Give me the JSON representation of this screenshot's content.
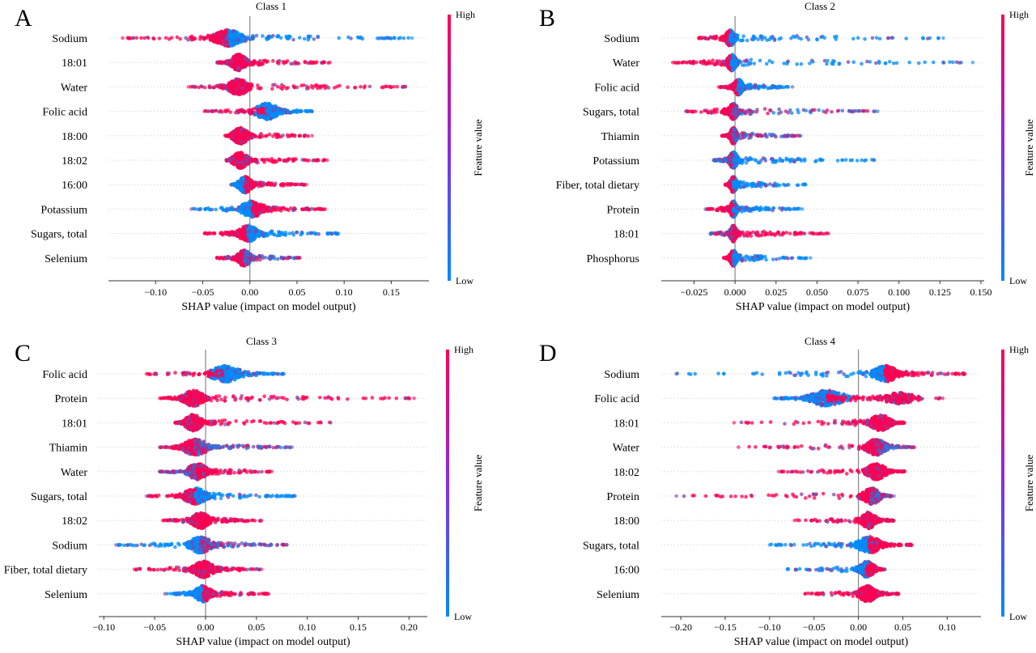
{
  "colorbar": {
    "label": "Feature value",
    "high_label": "High",
    "low_label": "Low",
    "high_color": "#ff0052",
    "low_color": "#008bfb",
    "mid_color": "#8a2be2"
  },
  "chart_data": [
    {
      "type": "scatter",
      "panel_label": "A",
      "title": "Class 1",
      "xlabel": "SHAP value (impact on model output)",
      "xlim": [
        -0.15,
        0.19
      ],
      "xticks": [
        "−0.10",
        "−0.05",
        "0.00",
        "0.05",
        "0.10",
        "0.15"
      ],
      "xtick_values": [
        -0.1,
        -0.05,
        0.0,
        0.05,
        0.1,
        0.15
      ],
      "features": [
        {
          "name": "Sodium",
          "left_min": -0.135,
          "right_max": 0.172,
          "center": -0.023,
          "width": 0.022,
          "left_color": "high",
          "right_color": "low"
        },
        {
          "name": "18:01",
          "left_min": -0.035,
          "right_max": 0.085,
          "center": -0.012,
          "width": 0.012,
          "left_color": "high",
          "right_color": "high"
        },
        {
          "name": "Water",
          "left_min": -0.065,
          "right_max": 0.165,
          "center": -0.012,
          "width": 0.015,
          "left_color": "high",
          "right_color": "high"
        },
        {
          "name": "Folic acid",
          "left_min": -0.048,
          "right_max": 0.066,
          "center": 0.018,
          "width": 0.018,
          "left_color": "high",
          "right_color": "low",
          "split": 0.006
        },
        {
          "name": "18:00",
          "left_min": -0.025,
          "right_max": 0.066,
          "center": -0.01,
          "width": 0.012,
          "left_color": "high",
          "right_color": "high"
        },
        {
          "name": "18:02",
          "left_min": -0.025,
          "right_max": 0.082,
          "center": -0.01,
          "width": 0.012,
          "left_color": "high",
          "right_color": "high"
        },
        {
          "name": "16:00",
          "left_min": -0.02,
          "right_max": 0.06,
          "center": -0.005,
          "width": 0.01,
          "left_color": "low",
          "right_color": "high"
        },
        {
          "name": "Potassium",
          "left_min": -0.062,
          "right_max": 0.08,
          "center": 0.003,
          "width": 0.018,
          "left_color": "low",
          "right_color": "high"
        },
        {
          "name": "Sugars, total",
          "left_min": -0.048,
          "right_max": 0.094,
          "center": -0.002,
          "width": 0.015,
          "left_color": "high",
          "right_color": "low"
        },
        {
          "name": "Selenium",
          "left_min": -0.035,
          "right_max": 0.053,
          "center": -0.006,
          "width": 0.01,
          "left_color": "high",
          "right_color": "mixed"
        }
      ]
    },
    {
      "type": "scatter",
      "panel_label": "B",
      "title": "Class 2",
      "xlabel": "SHAP value (impact on model output)",
      "xlim": [
        -0.045,
        0.152
      ],
      "xticks": [
        "−0.025",
        "0.000",
        "0.025",
        "0.050",
        "0.075",
        "0.100",
        "0.125",
        "0.150"
      ],
      "xtick_values": [
        -0.025,
        0.0,
        0.025,
        0.05,
        0.075,
        0.1,
        0.125,
        0.15
      ],
      "features": [
        {
          "name": "Sodium",
          "left_min": -0.022,
          "right_max": 0.127,
          "center": -0.003,
          "width": 0.004,
          "left_color": "high",
          "right_color": "low"
        },
        {
          "name": "Water",
          "left_min": -0.038,
          "right_max": 0.145,
          "center": -0.002,
          "width": 0.004,
          "left_color": "high",
          "right_color": "low"
        },
        {
          "name": "Folic acid",
          "left_min": -0.01,
          "right_max": 0.035,
          "center": 0.002,
          "width": 0.004,
          "left_color": "high",
          "right_color": "low"
        },
        {
          "name": "Sugars, total",
          "left_min": -0.03,
          "right_max": 0.087,
          "center": -0.001,
          "width": 0.004,
          "left_color": "high",
          "right_color": "mixed"
        },
        {
          "name": "Thiamin",
          "left_min": -0.008,
          "right_max": 0.04,
          "center": -0.001,
          "width": 0.003,
          "left_color": "high",
          "right_color": "mixed"
        },
        {
          "name": "Potassium",
          "left_min": -0.013,
          "right_max": 0.085,
          "center": -0.001,
          "width": 0.004,
          "left_color": "mixed",
          "right_color": "low"
        },
        {
          "name": "Fiber, total dietary",
          "left_min": -0.006,
          "right_max": 0.043,
          "center": -0.001,
          "width": 0.003,
          "left_color": "high",
          "right_color": "low"
        },
        {
          "name": "Protein",
          "left_min": -0.018,
          "right_max": 0.041,
          "center": -0.001,
          "width": 0.003,
          "left_color": "high",
          "right_color": "low"
        },
        {
          "name": "18:01",
          "left_min": -0.015,
          "right_max": 0.057,
          "center": -0.001,
          "width": 0.003,
          "left_color": "mixed",
          "right_color": "high"
        },
        {
          "name": "Phosphorus",
          "left_min": -0.007,
          "right_max": 0.046,
          "center": -0.001,
          "width": 0.003,
          "left_color": "high",
          "right_color": "low"
        }
      ]
    },
    {
      "type": "scatter",
      "panel_label": "C",
      "title": "Class 3",
      "xlabel": "SHAP value (impact on model output)",
      "xlim": [
        -0.105,
        0.218
      ],
      "xticks": [
        "−0.10",
        "−0.05",
        "0.00",
        "0.05",
        "0.10",
        "0.15",
        "0.20"
      ],
      "xtick_values": [
        -0.1,
        -0.05,
        0.0,
        0.05,
        0.1,
        0.15,
        0.2
      ],
      "features": [
        {
          "name": "Folic acid",
          "left_min": -0.058,
          "right_max": 0.077,
          "center": 0.02,
          "width": 0.022,
          "left_color": "high",
          "right_color": "low",
          "split": 0.005
        },
        {
          "name": "Protein",
          "left_min": -0.045,
          "right_max": 0.205,
          "center": -0.012,
          "width": 0.014,
          "left_color": "high",
          "right_color": "high"
        },
        {
          "name": "18:01",
          "left_min": -0.03,
          "right_max": 0.123,
          "center": -0.012,
          "width": 0.012,
          "left_color": "high",
          "right_color": "high"
        },
        {
          "name": "Thiamin",
          "left_min": -0.045,
          "right_max": 0.085,
          "center": -0.01,
          "width": 0.018,
          "left_color": "high",
          "right_color": "mixed"
        },
        {
          "name": "Water",
          "left_min": -0.045,
          "right_max": 0.065,
          "center": -0.008,
          "width": 0.014,
          "left_color": "mixed",
          "right_color": "high"
        },
        {
          "name": "Sugars, total",
          "left_min": -0.058,
          "right_max": 0.088,
          "center": -0.01,
          "width": 0.016,
          "left_color": "high",
          "right_color": "low"
        },
        {
          "name": "18:02",
          "left_min": -0.042,
          "right_max": 0.055,
          "center": -0.005,
          "width": 0.012,
          "left_color": "high",
          "right_color": "high"
        },
        {
          "name": "Sodium",
          "left_min": -0.088,
          "right_max": 0.08,
          "center": -0.005,
          "width": 0.016,
          "left_color": "low",
          "right_color": "mixed"
        },
        {
          "name": "Fiber, total dietary",
          "left_min": -0.07,
          "right_max": 0.055,
          "center": -0.002,
          "width": 0.014,
          "left_color": "high",
          "right_color": "high"
        },
        {
          "name": "Selenium",
          "left_min": -0.04,
          "right_max": 0.062,
          "center": -0.002,
          "width": 0.012,
          "left_color": "low",
          "right_color": "high"
        }
      ]
    },
    {
      "type": "scatter",
      "panel_label": "D",
      "title": "Class 4",
      "xlabel": "SHAP value (impact on model output)",
      "xlim": [
        -0.222,
        0.138
      ],
      "xticks": [
        "−0.20",
        "−0.15",
        "−0.10",
        "−0.05",
        "0.00",
        "0.05",
        "0.10"
      ],
      "xtick_values": [
        -0.2,
        -0.15,
        -0.1,
        -0.05,
        0.0,
        0.05,
        0.1
      ],
      "features": [
        {
          "name": "Sodium",
          "left_min": -0.205,
          "right_max": 0.12,
          "center": 0.03,
          "width": 0.02,
          "left_color": "low",
          "right_color": "high"
        },
        {
          "name": "Folic acid",
          "left_min": -0.095,
          "right_max": 0.095,
          "center": -0.035,
          "width": 0.028,
          "left_color": "low",
          "right_color": "high",
          "split": 0.0,
          "center2": 0.045
        },
        {
          "name": "18:01",
          "left_min": -0.14,
          "right_max": 0.052,
          "center": 0.025,
          "width": 0.016,
          "left_color": "high",
          "right_color": "high"
        },
        {
          "name": "Water",
          "left_min": -0.135,
          "right_max": 0.063,
          "center": 0.02,
          "width": 0.016,
          "left_color": "high",
          "right_color": "mixed"
        },
        {
          "name": "18:02",
          "left_min": -0.09,
          "right_max": 0.052,
          "center": 0.02,
          "width": 0.016,
          "left_color": "high",
          "right_color": "high"
        },
        {
          "name": "Protein",
          "left_min": -0.205,
          "right_max": 0.04,
          "center": 0.015,
          "width": 0.014,
          "left_color": "high",
          "right_color": "mixed"
        },
        {
          "name": "18:00",
          "left_min": -0.072,
          "right_max": 0.04,
          "center": 0.012,
          "width": 0.012,
          "left_color": "high",
          "right_color": "high"
        },
        {
          "name": "Sugars, total",
          "left_min": -0.1,
          "right_max": 0.06,
          "center": 0.012,
          "width": 0.02,
          "left_color": "low",
          "right_color": "high"
        },
        {
          "name": "16:00",
          "left_min": -0.08,
          "right_max": 0.03,
          "center": 0.01,
          "width": 0.012,
          "left_color": "low",
          "right_color": "high"
        },
        {
          "name": "Selenium",
          "left_min": -0.06,
          "right_max": 0.045,
          "center": 0.01,
          "width": 0.014,
          "left_color": "high",
          "right_color": "high"
        }
      ]
    }
  ]
}
